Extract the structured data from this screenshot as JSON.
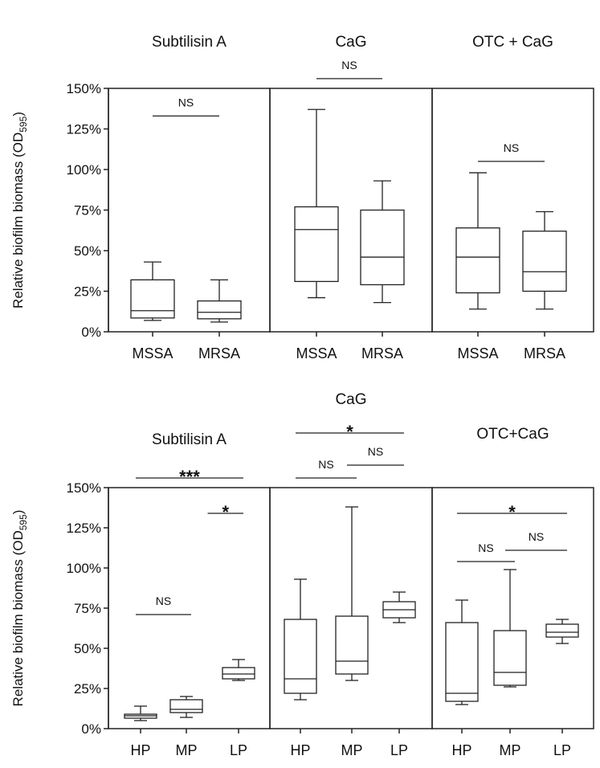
{
  "chart_data": [
    {
      "type": "box",
      "ylabel": "Relative biofilm biomass (OD595)",
      "ylabel_main": "Relative biofilm biomass (OD",
      "ylabel_sub": "595",
      "ylabel_close": ")",
      "ylim": [
        0,
        150
      ],
      "yticks": [
        0,
        25,
        50,
        75,
        100,
        125,
        150
      ],
      "ytick_labels": [
        "0%",
        "25%",
        "50%",
        "75%",
        "100%",
        "125%",
        "150%"
      ],
      "grid": false,
      "panels": [
        {
          "title": "Subtilisin A",
          "categories": [
            "MSSA",
            "MRSA"
          ],
          "boxes": [
            {
              "min": 7,
              "q1": 8.5,
              "median": 13,
              "q3": 32,
              "max": 43
            },
            {
              "min": 6,
              "q1": 8,
              "median": 12,
              "q3": 19,
              "max": 32
            }
          ],
          "annotations": [
            {
              "from": 0,
              "to": 1,
              "y": 133,
              "label": "NS"
            }
          ]
        },
        {
          "title": "CaG",
          "categories": [
            "MSSA",
            "MRSA"
          ],
          "boxes": [
            {
              "min": 21,
              "q1": 31,
              "median": 63,
              "q3": 77,
              "max": 137
            },
            {
              "min": 18,
              "q1": 29,
              "median": 46,
              "q3": 75,
              "max": 93
            }
          ],
          "annotations": [
            {
              "from": 0,
              "to": 1,
              "y": 156,
              "label": "NS"
            }
          ]
        },
        {
          "title": "OTC + CaG",
          "categories": [
            "MSSA",
            "MRSA"
          ],
          "boxes": [
            {
              "min": 14,
              "q1": 24,
              "median": 46,
              "q3": 64,
              "max": 98
            },
            {
              "min": 14,
              "q1": 25,
              "median": 37,
              "q3": 62,
              "max": 74
            }
          ],
          "annotations": [
            {
              "from": 0,
              "to": 1,
              "y": 105,
              "label": "NS"
            }
          ]
        }
      ]
    },
    {
      "type": "box",
      "ylabel": "Relative biofilm biomass (OD595)",
      "ylabel_main": "Relative biofilm biomass (OD",
      "ylabel_sub": "595",
      "ylabel_close": ")",
      "ylim": [
        0,
        150
      ],
      "yticks": [
        0,
        25,
        50,
        75,
        100,
        125,
        150
      ],
      "ytick_labels": [
        "0%",
        "25%",
        "50%",
        "75%",
        "100%",
        "125%",
        "150%"
      ],
      "grid": false,
      "panels": [
        {
          "title": "Subtilisin A",
          "categories": [
            "HP",
            "MP",
            "LP"
          ],
          "boxes": [
            {
              "min": 5,
              "q1": 6.5,
              "median": 8,
              "q3": 9,
              "max": 14
            },
            {
              "min": 7,
              "q1": 10,
              "median": 12,
              "q3": 18,
              "max": 20
            },
            {
              "min": 30,
              "q1": 31,
              "median": 34,
              "q3": 38,
              "max": 43
            }
          ],
          "annotations": [
            {
              "from": 0,
              "to": 1,
              "y": 71,
              "label": "NS"
            },
            {
              "from": 0,
              "to": 2,
              "y": 156,
              "label": "***"
            },
            {
              "from": 1.5,
              "to": 2,
              "y": 134,
              "label": "*"
            }
          ]
        },
        {
          "title": "CaG",
          "categories": [
            "HP",
            "MP",
            "LP"
          ],
          "boxes": [
            {
              "min": 18,
              "q1": 22,
              "median": 31,
              "q3": 68,
              "max": 93
            },
            {
              "min": 30,
              "q1": 34,
              "median": 42,
              "q3": 70,
              "max": 138
            },
            {
              "min": 66,
              "q1": 69,
              "median": 74,
              "q3": 79,
              "max": 85
            }
          ],
          "annotations": [
            {
              "from": 0,
              "to": 1,
              "y": 156,
              "label": "NS"
            },
            {
              "from": 1,
              "to": 2,
              "y": 164,
              "label": "NS"
            },
            {
              "from": 0,
              "to": 2,
              "y": 184,
              "label": "*"
            }
          ]
        },
        {
          "title": "OTC+CaG",
          "categories": [
            "HP",
            "MP",
            "LP"
          ],
          "boxes": [
            {
              "min": 15,
              "q1": 17,
              "median": 22,
              "q3": 66,
              "max": 80
            },
            {
              "min": 26,
              "q1": 27,
              "median": 35,
              "q3": 61,
              "max": 99
            },
            {
              "min": 53,
              "q1": 57,
              "median": 60,
              "q3": 65,
              "max": 68
            }
          ],
          "annotations": [
            {
              "from": 0,
              "to": 1,
              "y": 104,
              "label": "NS"
            },
            {
              "from": 1,
              "to": 2,
              "y": 111,
              "label": "NS"
            },
            {
              "from": 0,
              "to": 2,
              "y": 134,
              "label": "*"
            }
          ]
        }
      ]
    }
  ]
}
